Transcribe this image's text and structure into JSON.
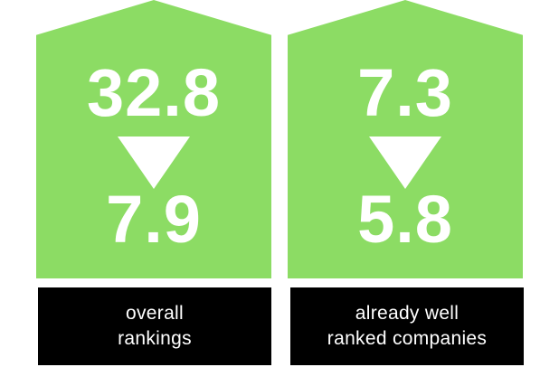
{
  "cards": [
    {
      "from_value": "32.8",
      "to_value": "7.9",
      "label": "overall\nrankings"
    },
    {
      "from_value": "7.3",
      "to_value": "5.8",
      "label": "already well\nranked companies"
    }
  ],
  "colors": {
    "card_fill": "#8cdc64",
    "label_fill": "#000000",
    "text": "#ffffff"
  },
  "icons": {
    "change_arrow": "down-triangle-icon"
  }
}
